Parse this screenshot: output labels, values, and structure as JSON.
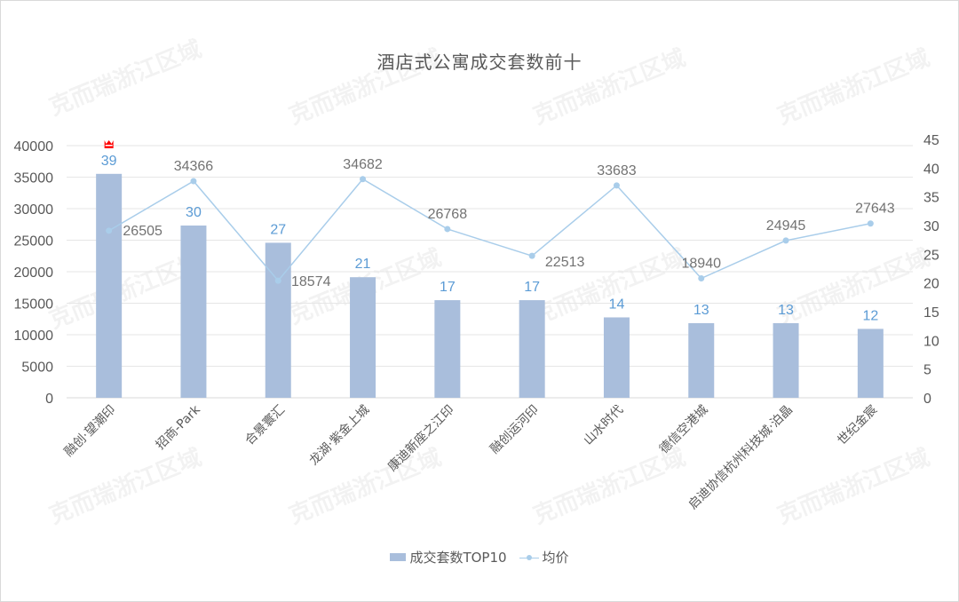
{
  "chart_data": {
    "type": "bar+line",
    "title": "酒店式公寓成交套数前十",
    "categories": [
      "融创·望潮印",
      "招商-Park",
      "合景寰汇",
      "龙湖·紫金上城",
      "康迪新座之江印",
      "融创运河印",
      "山水时代",
      "德信空港城",
      "启迪协信杭州科技城·泊晶",
      "世纪金宸"
    ],
    "series": [
      {
        "name": "成交套数TOP10",
        "type": "bar",
        "axis": "right",
        "color": "#a9bedc",
        "label_color": "#5b9bd5",
        "values": [
          39,
          30,
          27,
          21,
          17,
          17,
          14,
          13,
          13,
          12
        ]
      },
      {
        "name": "均价",
        "type": "line",
        "axis": "left",
        "color": "#a9cdea",
        "label_color": "#737373",
        "values": [
          26505,
          34366,
          18574,
          34682,
          26768,
          22513,
          33683,
          18940,
          24945,
          27643
        ]
      }
    ],
    "left_axis": {
      "min": 0,
      "max": 40000,
      "step": 5000,
      "ticks": [
        "0",
        "5000",
        "10000",
        "15000",
        "20000",
        "25000",
        "30000",
        "35000",
        "40000"
      ]
    },
    "right_axis": {
      "min": 0,
      "max": 45,
      "step": 5,
      "ticks": [
        "0",
        "5",
        "10",
        "15",
        "20",
        "25",
        "30",
        "35",
        "40",
        "45"
      ]
    },
    "grid": true,
    "legend_position": "bottom",
    "annotation": {
      "type": "crown-icon",
      "category_index": 0,
      "color": "#ff0000"
    }
  },
  "watermark": "克而瑞浙江区域",
  "legend": {
    "bar_label": "成交套数TOP10",
    "line_label": "均价"
  }
}
